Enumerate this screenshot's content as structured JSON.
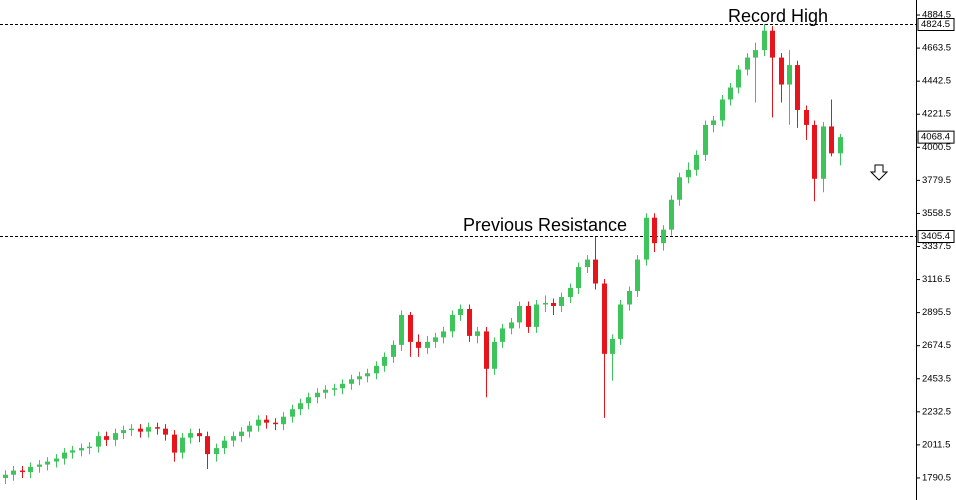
{
  "chart_data": {
    "type": "candlestick",
    "ylim": [
      1710,
      4985
    ],
    "yticks": [
      1790.5,
      2011.5,
      2232.5,
      2453.5,
      2674.5,
      2895.5,
      3116.5,
      3337.5,
      3558.5,
      3779.5,
      4000.5,
      4221.5,
      4442.5,
      4663.5,
      4884.5
    ],
    "up_color": "#3dc45a",
    "down_color": "#e8141c",
    "annotations": [
      {
        "text": "Record High",
        "value": 4824.5
      },
      {
        "text": "Previous Resistance",
        "value": 3405.4
      }
    ],
    "last_price": 4068.4,
    "open": [
      1790,
      1812,
      1840,
      1830,
      1865,
      1880,
      1900,
      1920,
      1960,
      1975,
      1990,
      2000,
      2070,
      2045,
      2090,
      2110,
      2120,
      2100,
      2130,
      2120,
      2080,
      1960,
      2060,
      2090,
      2070,
      1950,
      1990,
      2040,
      2070,
      2100,
      2140,
      2180,
      2160,
      2150,
      2200,
      2250,
      2290,
      2330,
      2360,
      2380,
      2390,
      2420,
      2450,
      2470,
      2490,
      2540,
      2600,
      2680,
      2880,
      2700,
      2660,
      2700,
      2730,
      2770,
      2880,
      2920,
      2740,
      2770,
      2520,
      2700,
      2790,
      2830,
      2940,
      2800,
      2950,
      2960,
      2940,
      3000,
      3060,
      3200,
      3250,
      3090,
      2620,
      2720,
      2950,
      3040,
      3250,
      3530,
      3360,
      3450,
      3650,
      3800,
      3850,
      3950,
      4150,
      4180,
      4320,
      4400,
      4520,
      4600,
      4650,
      4780,
      4600,
      4420,
      4550,
      4250,
      4150,
      3790,
      4140,
      3960
    ],
    "high": [
      1842,
      1870,
      1870,
      1895,
      1910,
      1930,
      1950,
      1990,
      2005,
      2020,
      2030,
      2100,
      2100,
      2120,
      2140,
      2150,
      2150,
      2160,
      2160,
      2150,
      2110,
      2090,
      2120,
      2120,
      2100,
      2020,
      2070,
      2100,
      2130,
      2170,
      2210,
      2210,
      2190,
      2230,
      2280,
      2320,
      2360,
      2390,
      2410,
      2420,
      2450,
      2480,
      2500,
      2520,
      2570,
      2630,
      2710,
      2910,
      2900,
      2750,
      2740,
      2760,
      2800,
      2910,
      2950,
      2950,
      2800,
      2800,
      2730,
      2820,
      2860,
      2970,
      2970,
      2980,
      3010,
      2990,
      3030,
      3090,
      3230,
      3280,
      3400,
      3120,
      2750,
      2980,
      3070,
      3280,
      3560,
      3560,
      3480,
      3680,
      3830,
      3900,
      3980,
      4180,
      4210,
      4350,
      4430,
      4550,
      4630,
      4700,
      4824.5,
      4810,
      4630,
      4650,
      4580,
      4280,
      4180,
      4170,
      4320,
      4090
    ],
    "low": [
      1750,
      1772,
      1790,
      1790,
      1825,
      1840,
      1860,
      1880,
      1920,
      1935,
      1950,
      1960,
      2005,
      2005,
      2050,
      2070,
      2060,
      2060,
      2080,
      2040,
      1900,
      1920,
      2020,
      2030,
      1850,
      1900,
      1950,
      2000,
      2030,
      2060,
      2100,
      2120,
      2110,
      2110,
      2160,
      2210,
      2250,
      2290,
      2320,
      2340,
      2350,
      2380,
      2410,
      2430,
      2450,
      2500,
      2560,
      2640,
      2600,
      2600,
      2620,
      2660,
      2690,
      2730,
      2840,
      2700,
      2690,
      2330,
      2480,
      2660,
      2750,
      2790,
      2760,
      2760,
      2900,
      2880,
      2900,
      2960,
      3020,
      3160,
      3050,
      2192,
      2440,
      2680,
      2910,
      3000,
      3210,
      3300,
      3310,
      3410,
      3610,
      3760,
      3810,
      3910,
      4100,
      4140,
      4280,
      4360,
      4480,
      4300,
      4610,
      4200,
      4300,
      4150,
      4130,
      4050,
      3640,
      3700,
      3940,
      3880
    ],
    "close": [
      1812,
      1840,
      1830,
      1865,
      1880,
      1900,
      1920,
      1960,
      1975,
      1990,
      2000,
      2070,
      2045,
      2090,
      2110,
      2120,
      2100,
      2130,
      2120,
      2080,
      1960,
      2060,
      2090,
      2070,
      1950,
      1990,
      2040,
      2070,
      2100,
      2140,
      2180,
      2160,
      2150,
      2200,
      2250,
      2290,
      2330,
      2360,
      2380,
      2390,
      2420,
      2450,
      2470,
      2490,
      2540,
      2600,
      2680,
      2880,
      2700,
      2660,
      2700,
      2730,
      2770,
      2880,
      2920,
      2740,
      2770,
      2520,
      2700,
      2790,
      2830,
      2940,
      2800,
      2950,
      2960,
      2940,
      3000,
      3060,
      3200,
      3250,
      3090,
      2620,
      2720,
      2950,
      3040,
      3250,
      3530,
      3360,
      3450,
      3650,
      3800,
      3850,
      3950,
      4150,
      4180,
      4320,
      4400,
      4520,
      4600,
      4650,
      4780,
      4600,
      4420,
      4550,
      4250,
      4150,
      3790,
      4140,
      3960,
      4068.4
    ]
  }
}
